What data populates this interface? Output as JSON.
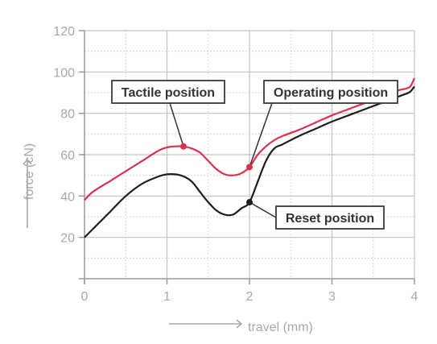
{
  "chart_data": {
    "type": "line",
    "xlabel": "travel (mm)",
    "ylabel": "force (cN)",
    "xlim": [
      0,
      4
    ],
    "ylim": [
      0,
      120
    ],
    "x_ticks": [
      "0",
      "1",
      "2",
      "3",
      "4"
    ],
    "y_ticks": [
      "20",
      "40",
      "60",
      "80",
      "100",
      "120"
    ],
    "grid": true,
    "series": [
      {
        "color": "#d6334f",
        "x": [
          0,
          0.1,
          0.3,
          0.5,
          0.7,
          0.9,
          1.0,
          1.1,
          1.2,
          1.3,
          1.4,
          1.5,
          1.6,
          1.7,
          1.8,
          1.9,
          2.0,
          2.1,
          2.2,
          2.3,
          2.4,
          2.6,
          2.8,
          3.0,
          3.2,
          3.4,
          3.6,
          3.8,
          3.9,
          3.95,
          4.0
        ],
        "y": [
          38,
          42,
          47,
          52,
          57,
          62,
          63.5,
          64,
          64,
          63,
          61,
          57,
          53,
          50.5,
          50,
          51,
          54,
          60,
          64,
          67,
          69,
          72,
          75.5,
          79,
          82,
          85,
          88,
          91,
          92,
          93,
          97
        ]
      },
      {
        "color": "#1e1e1e",
        "x": [
          0,
          0.1,
          0.3,
          0.5,
          0.7,
          0.9,
          1.0,
          1.1,
          1.2,
          1.3,
          1.4,
          1.5,
          1.6,
          1.7,
          1.8,
          1.9,
          2.0,
          2.1,
          2.2,
          2.3,
          2.4,
          2.6,
          2.8,
          3.0,
          3.2,
          3.4,
          3.6,
          3.8,
          3.9,
          3.95,
          4.0
        ],
        "y": [
          20,
          24,
          32,
          40,
          46,
          49.5,
          50.5,
          50.5,
          49.5,
          47,
          42,
          37,
          33,
          31,
          31,
          34,
          37,
          47,
          57,
          63,
          65,
          69,
          72.5,
          76,
          79,
          82,
          85,
          88,
          89.5,
          90.5,
          93
        ]
      }
    ],
    "annotations": [
      {
        "label": "Tactile position",
        "x": 1.2,
        "y": 64,
        "color": "#d6334f"
      },
      {
        "label": "Operating position",
        "x": 2.0,
        "y": 54,
        "color": "#d6334f"
      },
      {
        "label": "Reset position",
        "x": 2.0,
        "y": 37,
        "color": "#1e1e1e"
      }
    ]
  }
}
